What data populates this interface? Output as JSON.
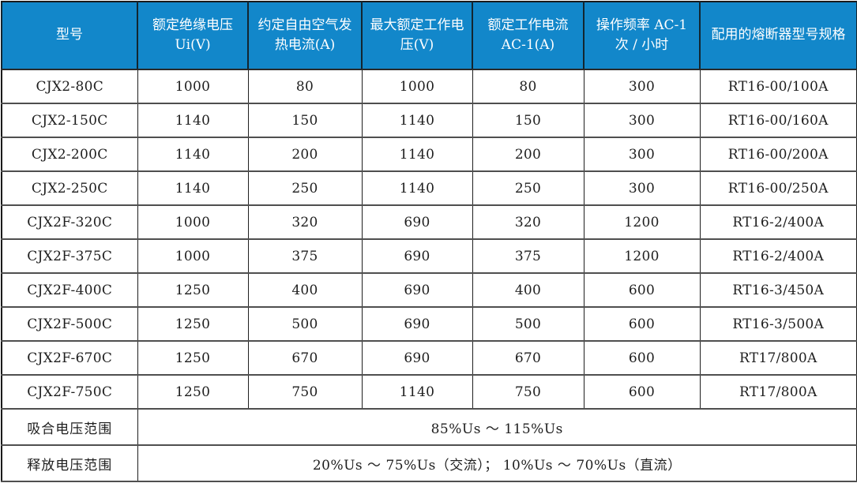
{
  "colors": {
    "header_bg": "#1287CA",
    "header_text": "#FFFFFF",
    "body_text": "#1E1E1E",
    "grid_line_horizontal": "#4F4F4F",
    "grid_line_vertical": "#1F1F1F",
    "outer_border": "#1A1A1A",
    "row_bg": "#FFFFFF"
  },
  "table": {
    "columns": [
      "型号",
      "额定绝缘电压 Ui(V)",
      "约定自由空气发热电流(A)",
      "最大额定工作电压(V)",
      "额定工作电流 AC-1(A)",
      "操作频率 AC-1 次 / 小时",
      "配用的熔断器型号规格"
    ],
    "rows": [
      [
        "CJX2-80C",
        "1000",
        "80",
        "1000",
        "80",
        "300",
        "RT16-00/100A"
      ],
      [
        "CJX2-150C",
        "1140",
        "150",
        "1140",
        "150",
        "300",
        "RT16-00/160A"
      ],
      [
        "CJX2-200C",
        "1140",
        "200",
        "1140",
        "200",
        "300",
        "RT16-00/200A"
      ],
      [
        "CJX2-250C",
        "1140",
        "250",
        "1140",
        "250",
        "300",
        "RT16-00/250A"
      ],
      [
        "CJX2F-320C",
        "1000",
        "320",
        "690",
        "320",
        "1200",
        "RT16-2/400A"
      ],
      [
        "CJX2F-375C",
        "1000",
        "375",
        "690",
        "375",
        "1200",
        "RT16-2/400A"
      ],
      [
        "CJX2F-400C",
        "1250",
        "400",
        "690",
        "400",
        "600",
        "RT16-3/450A"
      ],
      [
        "CJX2F-500C",
        "1250",
        "500",
        "690",
        "500",
        "600",
        "RT16-3/500A"
      ],
      [
        "CJX2F-670C",
        "1250",
        "670",
        "690",
        "670",
        "600",
        "RT17/800A"
      ],
      [
        "CJX2F-750C",
        "1250",
        "750",
        "1140",
        "750",
        "600",
        "RT17/800A"
      ]
    ],
    "footer_rows": [
      {
        "label": "吸合电压范围",
        "value": "85%Us ～ 115%Us"
      },
      {
        "label": "释放电压范围",
        "value": "20%Us ～ 75%Us（交流）； 10%Us ～ 70%Us（直流）"
      }
    ]
  }
}
